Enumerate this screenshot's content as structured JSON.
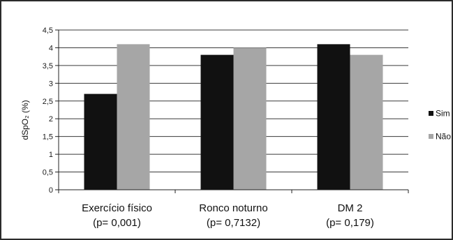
{
  "chart_data": {
    "type": "bar",
    "title": "",
    "xlabel": "",
    "ylabel": "dSpO₂ (%)",
    "ylim": [
      0,
      4.5
    ],
    "y_ticks": [
      "0",
      "0,5",
      "1",
      "1,5",
      "2",
      "2,5",
      "3",
      "3,5",
      "4",
      "4,5"
    ],
    "y_tick_values": [
      0,
      0.5,
      1,
      1.5,
      2,
      2.5,
      3,
      3.5,
      4,
      4.5
    ],
    "grid": true,
    "legend_position": "right",
    "categories": [
      "Exercício físico",
      "Ronco noturno",
      "DM 2"
    ],
    "category_pvalues": [
      "(p= 0,001)",
      "(p= 0,7132)",
      "(p= 0,179)"
    ],
    "series": [
      {
        "name": "Sim",
        "color": "#111111",
        "values": [
          2.7,
          3.8,
          4.1
        ]
      },
      {
        "name": "Não",
        "color": "#a6a6a6",
        "values": [
          4.1,
          4.0,
          3.8
        ]
      }
    ]
  }
}
